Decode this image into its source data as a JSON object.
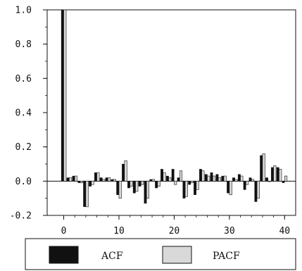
{
  "chart_data": {
    "type": "bar",
    "title": "",
    "xlabel": "",
    "ylabel": "",
    "xlim": [
      -3,
      42
    ],
    "ylim": [
      -0.2,
      1.0
    ],
    "grid": false,
    "legend_placement": "bottom",
    "x_ticks": [
      0,
      10,
      20,
      30,
      40
    ],
    "y_ticks": [
      1.0,
      0.8,
      0.6,
      0.4,
      0.2,
      0.0,
      -0.2
    ],
    "y_tick_labels": [
      "1.0",
      "0.8",
      "0.6",
      "0.4",
      "0.2",
      "0.0",
      "-0.2"
    ],
    "x": [
      0,
      1,
      2,
      3,
      4,
      5,
      6,
      7,
      8,
      9,
      10,
      11,
      12,
      13,
      14,
      15,
      16,
      17,
      18,
      19,
      20,
      21,
      22,
      23,
      24,
      25,
      26,
      27,
      28,
      29,
      30,
      31,
      32,
      33,
      34,
      35,
      36,
      37,
      38,
      39,
      40
    ],
    "series": [
      {
        "name": "ACF",
        "color": "#111111",
        "values": [
          1.0,
          0.02,
          0.03,
          -0.01,
          -0.15,
          -0.03,
          0.05,
          0.02,
          0.02,
          0.01,
          -0.08,
          0.1,
          -0.04,
          -0.07,
          -0.03,
          -0.13,
          0.01,
          -0.04,
          0.07,
          0.03,
          0.07,
          0.02,
          -0.1,
          -0.02,
          -0.08,
          0.07,
          0.04,
          0.05,
          0.04,
          0.03,
          -0.07,
          0.02,
          0.04,
          -0.05,
          0.02,
          -0.12,
          0.15,
          0.02,
          0.08,
          0.08,
          -0.01
        ]
      },
      {
        "name": "PACF",
        "color": "#d9d9d9",
        "values": [
          1.0,
          0.02,
          0.03,
          -0.01,
          -0.15,
          -0.02,
          0.05,
          0.01,
          0.02,
          0.01,
          -0.1,
          0.12,
          -0.03,
          -0.06,
          -0.02,
          -0.1,
          0.01,
          -0.03,
          0.05,
          0.02,
          -0.02,
          0.06,
          -0.09,
          -0.01,
          -0.05,
          0.06,
          0.03,
          0.03,
          0.02,
          0.03,
          -0.08,
          0.01,
          0.03,
          -0.02,
          0.01,
          -0.1,
          0.16,
          0.0,
          0.09,
          0.07,
          0.03
        ]
      }
    ]
  }
}
